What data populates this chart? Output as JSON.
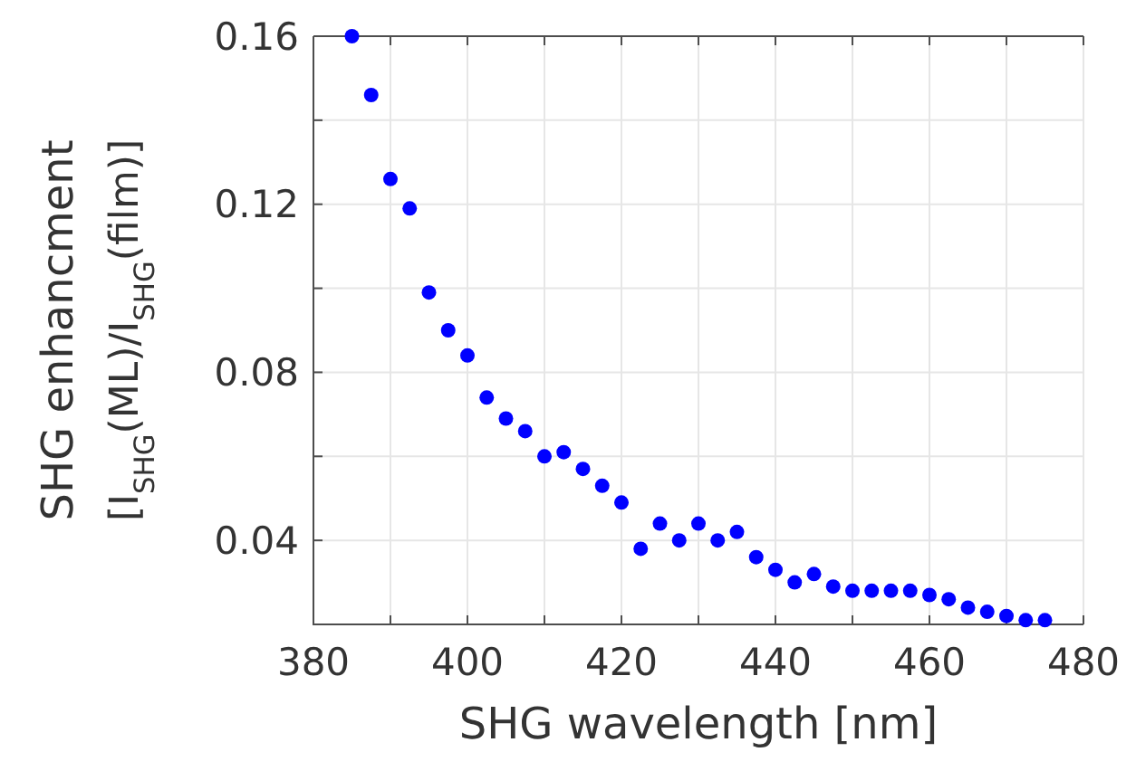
{
  "chart_data": {
    "type": "scatter",
    "xlabel": "SHG wavelength [nm]",
    "ylabel": "SHG enhancment\n[I$_{SHG}$(ML)/I$_{SHG}$(film)]",
    "x": [
      385,
      387.5,
      390,
      392.5,
      395,
      397.5,
      400,
      402.5,
      405,
      407.5,
      410,
      412.5,
      415,
      417.5,
      420,
      422.5,
      425,
      427.5,
      430,
      432.5,
      435,
      437.5,
      440,
      442.5,
      445,
      447.5,
      450,
      452.5,
      455,
      457.5,
      460,
      462.5,
      465,
      467.5,
      470,
      472.5,
      475
    ],
    "series": [
      {
        "color": "#0000ff",
        "values": [
          0.16,
          0.146,
          0.126,
          0.119,
          0.099,
          0.09,
          0.084,
          0.074,
          0.069,
          0.066,
          0.06,
          0.061,
          0.057,
          0.053,
          0.049,
          0.038,
          0.044,
          0.04,
          0.044,
          0.04,
          0.042,
          0.036,
          0.033,
          0.03,
          0.032,
          0.029,
          0.028,
          0.028,
          0.028,
          0.028,
          0.027,
          0.026,
          0.024,
          0.023,
          0.022,
          0.021,
          0.021
        ]
      }
    ],
    "xlim": [
      380,
      480
    ],
    "ylim": [
      0.02,
      0.16
    ],
    "xticks": [
      380,
      {
        "value": 390,
        "label": null
      },
      400,
      {
        "value": 410,
        "label": null
      },
      420,
      {
        "value": 430,
        "label": null
      },
      440,
      {
        "value": 450,
        "label": null
      },
      460,
      {
        "value": 470,
        "label": null
      },
      480
    ],
    "yticks": [
      {
        "value": 0.02,
        "label": null
      },
      0.04,
      {
        "value": 0.06,
        "label": null
      },
      0.08,
      {
        "value": 0.1,
        "label": null
      },
      0.12,
      {
        "value": 0.14,
        "label": null
      },
      0.16
    ],
    "grid": true,
    "marker": "circle"
  }
}
